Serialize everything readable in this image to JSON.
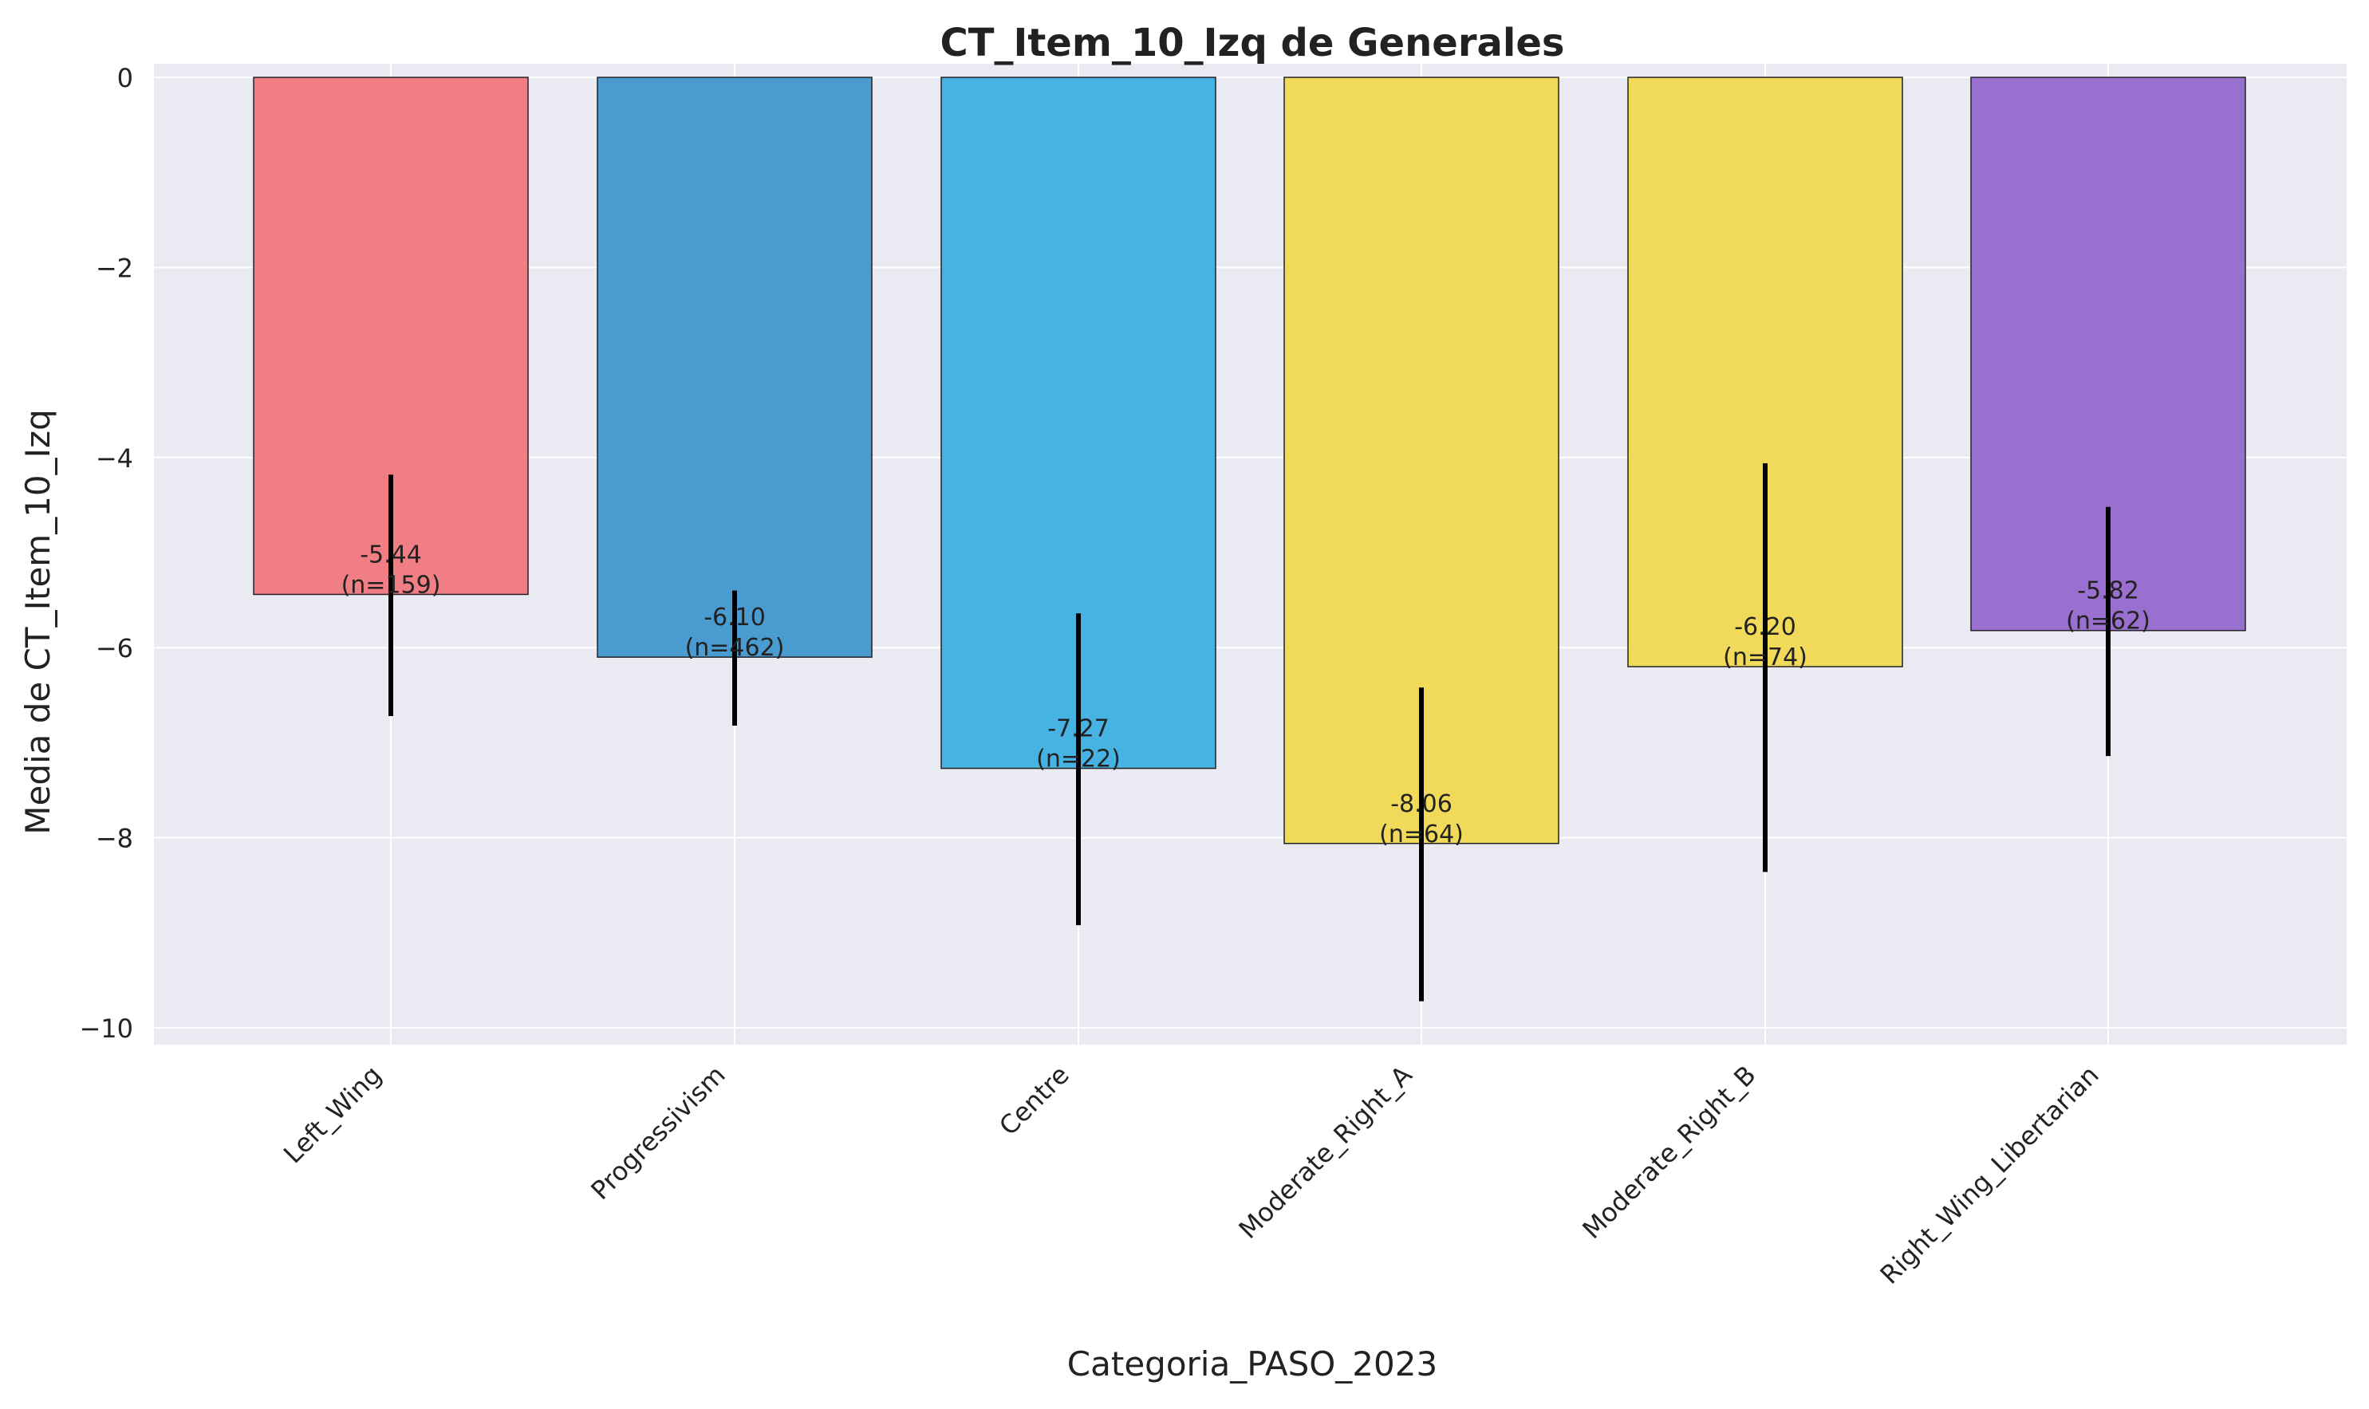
{
  "chart_data": {
    "type": "bar",
    "title": "CT_Item_10_Izq de Generales",
    "xlabel": "Categoria_PASO_2023",
    "ylabel": "Media de CT_Item_10_Izq",
    "ylim": [
      -10.18,
      0
    ],
    "yticks": [
      0,
      -2,
      -4,
      -6,
      -8,
      -10
    ],
    "ytick_labels": [
      "0",
      "−2",
      "−4",
      "−6",
      "−8",
      "−10"
    ],
    "grid": true,
    "categories": [
      "Left_Wing",
      "Progressivism",
      "Centre",
      "Moderate_Right_A",
      "Moderate_Right_B",
      "Right_Wing_Libertarian"
    ],
    "values": [
      -5.44,
      -6.1,
      -7.27,
      -8.06,
      -6.2,
      -5.82
    ],
    "error_low": [
      -6.72,
      -6.82,
      -8.92,
      -9.72,
      -8.36,
      -7.14
    ],
    "error_high": [
      -4.18,
      -5.4,
      -5.64,
      -6.42,
      -4.06,
      -4.52
    ],
    "value_labels": [
      "-5.44",
      "-6.10",
      "-7.27",
      "-8.06",
      "-6.20",
      "-5.82"
    ],
    "n_labels": [
      "(n=159)",
      "(n=462)",
      "(n=22)",
      "(n=64)",
      "(n=74)",
      "(n=62)"
    ],
    "colors": [
      "#f27e85",
      "#4a9bd0",
      "#47b3e2",
      "#f1d95a",
      "#f1d95a",
      "#9970cf"
    ],
    "background": "#eaeaf2"
  }
}
